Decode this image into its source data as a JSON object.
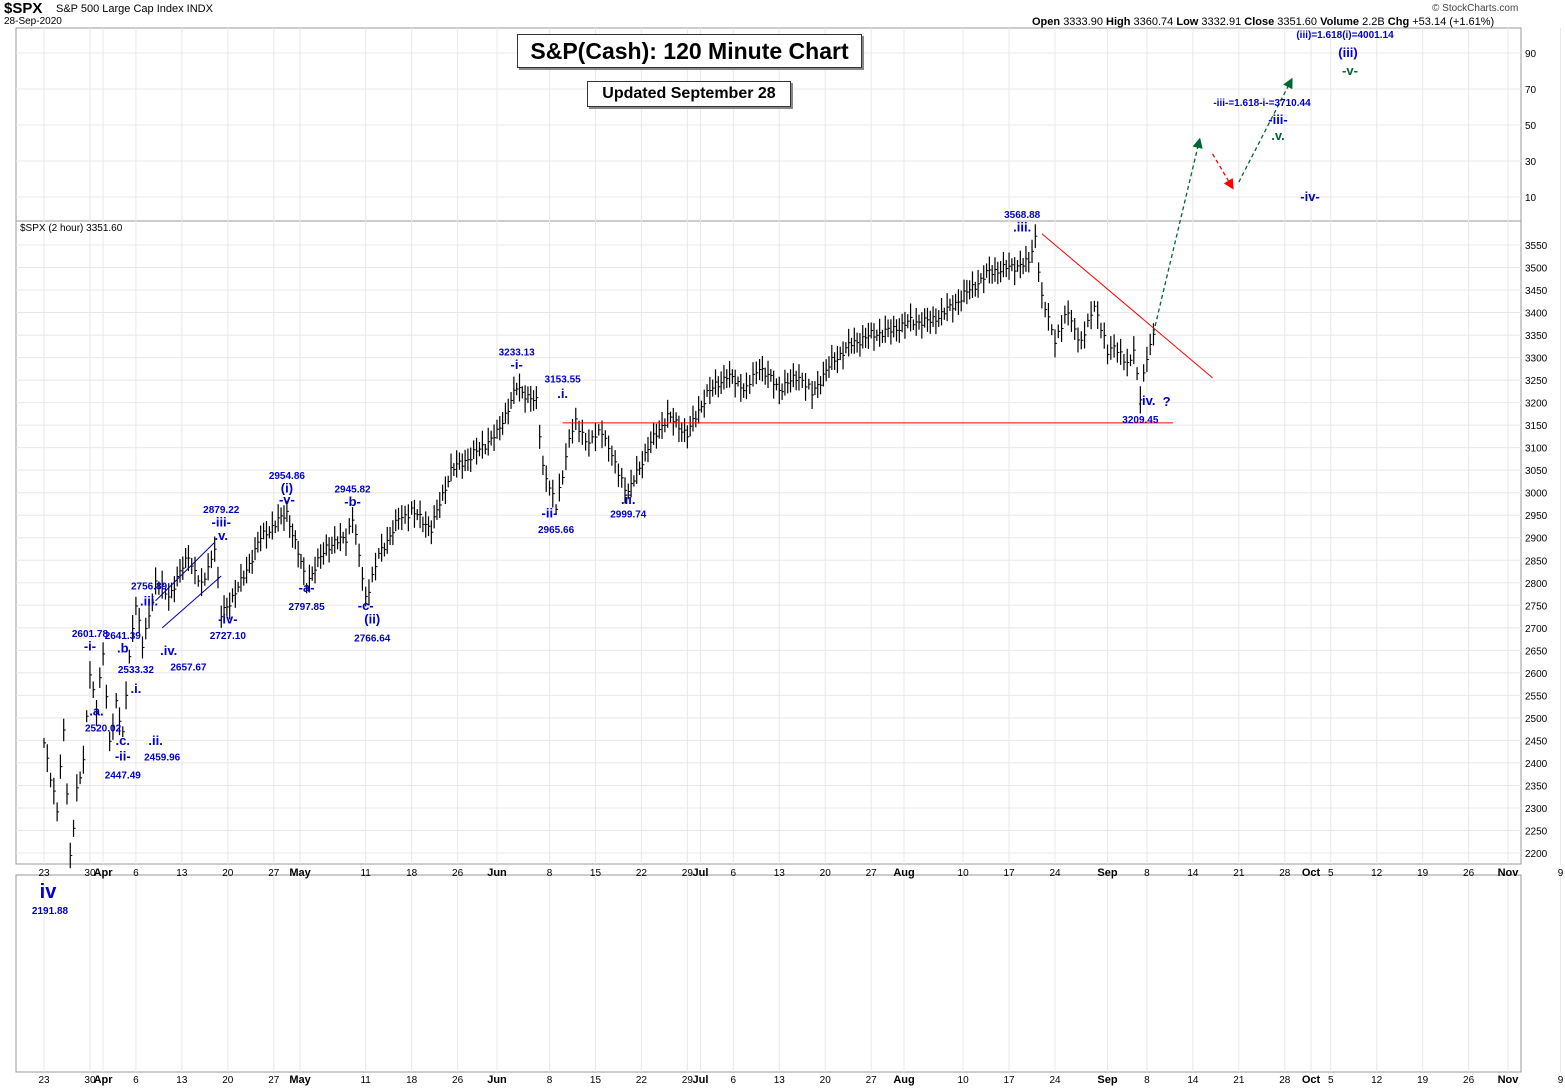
{
  "header": {
    "symbol": "$SPX",
    "name": "S&P 500 Large Cap Index INDX",
    "date": "28-Sep-2020",
    "open_label": "Open",
    "open": "3333.90",
    "high_label": "High",
    "high": "3360.74",
    "low_label": "Low",
    "low": "3332.91",
    "close_label": "Close",
    "close": "3351.60",
    "volume_label": "Volume",
    "volume": "2.2B",
    "chg_label": "Chg",
    "chg": "+53.14 (+1.61%)",
    "credit": "© StockCharts.com"
  },
  "titles": {
    "main": "S&P(Cash): 120 Minute Chart",
    "sub": "Updated September 28"
  },
  "panel_label": "$SPX (2 hour) 3351.60",
  "colors": {
    "wave_label": "#0000cc",
    "wave_label_dark": "#006633",
    "trendline": "#ff0000",
    "projection_up": "#006633",
    "projection_down": "#ff0000",
    "price": "#000000",
    "grid": "#e8e8e8"
  },
  "chart_data": {
    "type": "line",
    "title": "S&P(Cash): 120 Minute Chart",
    "subtitle": "Updated September 28",
    "series_label": "$SPX (2 hour) 3351.60",
    "ylim": [
      2180,
      3590
    ],
    "y_ticks": [
      2200,
      2250,
      2300,
      2350,
      2400,
      2450,
      2500,
      2550,
      2600,
      2650,
      2700,
      2750,
      2800,
      2850,
      2900,
      2950,
      3000,
      3050,
      3100,
      3150,
      3200,
      3250,
      3300,
      3350,
      3400,
      3450,
      3500,
      3550
    ],
    "y_ticks_upper": [
      "90",
      "70",
      "50",
      "30",
      "10"
    ],
    "x_ticks": [
      {
        "label": "23",
        "month": false,
        "day": 0
      },
      {
        "label": "30",
        "month": false,
        "day": 7
      },
      {
        "label": "Apr",
        "month": true,
        "day": 9
      },
      {
        "label": "6",
        "month": false,
        "day": 14
      },
      {
        "label": "13",
        "month": false,
        "day": 21
      },
      {
        "label": "20",
        "month": false,
        "day": 28
      },
      {
        "label": "27",
        "month": false,
        "day": 35
      },
      {
        "label": "May",
        "month": true,
        "day": 39
      },
      {
        "label": "11",
        "month": false,
        "day": 49
      },
      {
        "label": "18",
        "month": false,
        "day": 56
      },
      {
        "label": "26",
        "month": false,
        "day": 63
      },
      {
        "label": "Jun",
        "month": true,
        "day": 69
      },
      {
        "label": "8",
        "month": false,
        "day": 77
      },
      {
        "label": "15",
        "month": false,
        "day": 84
      },
      {
        "label": "22",
        "month": false,
        "day": 91
      },
      {
        "label": "29",
        "month": false,
        "day": 98
      },
      {
        "label": "Jul",
        "month": true,
        "day": 100
      },
      {
        "label": "6",
        "month": false,
        "day": 105
      },
      {
        "label": "13",
        "month": false,
        "day": 112
      },
      {
        "label": "20",
        "month": false,
        "day": 119
      },
      {
        "label": "27",
        "month": false,
        "day": 126
      },
      {
        "label": "Aug",
        "month": true,
        "day": 131
      },
      {
        "label": "10",
        "month": false,
        "day": 140
      },
      {
        "label": "17",
        "month": false,
        "day": 147
      },
      {
        "label": "24",
        "month": false,
        "day": 154
      },
      {
        "label": "Sep",
        "month": true,
        "day": 162
      },
      {
        "label": "8",
        "month": false,
        "day": 168
      },
      {
        "label": "14",
        "month": false,
        "day": 175
      },
      {
        "label": "21",
        "month": false,
        "day": 182
      },
      {
        "label": "28",
        "month": false,
        "day": 189
      },
      {
        "label": "Oct",
        "month": true,
        "day": 193
      },
      {
        "label": "5",
        "month": false,
        "day": 196
      },
      {
        "label": "12",
        "month": false,
        "day": 203
      },
      {
        "label": "19",
        "month": false,
        "day": 210
      },
      {
        "label": "26",
        "month": false,
        "day": 217
      },
      {
        "label": "Nov",
        "month": true,
        "day": 223
      },
      {
        "label": "9",
        "month": false,
        "day": 231
      }
    ],
    "price_path": [
      [
        0,
        2440
      ],
      [
        2,
        2300
      ],
      [
        3,
        2470
      ],
      [
        4,
        2191.88
      ],
      [
        5,
        2340
      ],
      [
        6,
        2400
      ],
      [
        7,
        2601.78
      ],
      [
        8,
        2520.02
      ],
      [
        9,
        2641.39
      ],
      [
        10,
        2447.49
      ],
      [
        11,
        2533.32
      ],
      [
        12,
        2459.96
      ],
      [
        13,
        2640
      ],
      [
        14,
        2756.89
      ],
      [
        15,
        2657.67
      ],
      [
        17,
        2800
      ],
      [
        19,
        2770
      ],
      [
        22,
        2860
      ],
      [
        24,
        2790
      ],
      [
        26,
        2879.22
      ],
      [
        27,
        2727.1
      ],
      [
        30,
        2800
      ],
      [
        33,
        2900
      ],
      [
        37,
        2954.86
      ],
      [
        40,
        2797.85
      ],
      [
        43,
        2880
      ],
      [
        46,
        2900
      ],
      [
        47,
        2945.82
      ],
      [
        49,
        2766.64
      ],
      [
        51,
        2860
      ],
      [
        54,
        2940
      ],
      [
        56,
        2960
      ],
      [
        59,
        2920
      ],
      [
        62,
        3050
      ],
      [
        65,
        3080
      ],
      [
        69,
        3130
      ],
      [
        72,
        3233.13
      ],
      [
        75,
        3200
      ],
      [
        76,
        3060
      ],
      [
        78,
        2965.66
      ],
      [
        80,
        3120
      ],
      [
        81,
        3153.55
      ],
      [
        83,
        3110
      ],
      [
        85,
        3140
      ],
      [
        87,
        3060
      ],
      [
        89,
        2999.74
      ],
      [
        92,
        3100
      ],
      [
        95,
        3170
      ],
      [
        98,
        3130
      ],
      [
        101,
        3220
      ],
      [
        104,
        3260
      ],
      [
        107,
        3230
      ],
      [
        109,
        3280
      ],
      [
        112,
        3230
      ],
      [
        115,
        3260
      ],
      [
        117,
        3220
      ],
      [
        120,
        3290
      ],
      [
        123,
        3330
      ],
      [
        126,
        3350
      ],
      [
        129,
        3360
      ],
      [
        132,
        3380
      ],
      [
        135,
        3380
      ],
      [
        138,
        3410
      ],
      [
        141,
        3450
      ],
      [
        144,
        3490
      ],
      [
        147,
        3500
      ],
      [
        150,
        3510
      ],
      [
        151,
        3568.88
      ],
      [
        152,
        3430
      ],
      [
        154,
        3340
      ],
      [
        156,
        3400
      ],
      [
        158,
        3330
      ],
      [
        160,
        3420
      ],
      [
        162,
        3310
      ],
      [
        163,
        3330
      ],
      [
        165,
        3280
      ],
      [
        166,
        3320
      ],
      [
        167,
        3209.45
      ],
      [
        168,
        3300
      ],
      [
        169,
        3351.6
      ]
    ],
    "horizontal_line": {
      "y": 3155,
      "from_day": 79,
      "to_day": 172
    },
    "trendline": {
      "from": [
        152,
        3575
      ],
      "to": [
        178,
        3255
      ]
    },
    "projection": [
      {
        "from": [
          169,
          3355
        ],
        "to": [
          176,
          3710.44
        ],
        "kind": "up"
      },
      {
        "from": [
          178,
          3690
        ],
        "to": [
          181,
          3640
        ],
        "kind": "down"
      },
      {
        "from": [
          182,
          3648
        ],
        "to": [
          190,
          3800
        ],
        "kind": "up"
      }
    ],
    "wave_labels": [
      {
        "text": "2601.78",
        "day": 7,
        "price": 2680,
        "kind": "value"
      },
      {
        "text": "-i-",
        "day": 7,
        "price": 2650,
        "kind": "wave"
      },
      {
        "text": ".a.",
        "day": 8,
        "price": 2505,
        "kind": "wave"
      },
      {
        "text": "2520.02",
        "day": 9,
        "price": 2470,
        "kind": "value"
      },
      {
        "text": "2641.39",
        "day": 12,
        "price": 2675,
        "kind": "value"
      },
      {
        "text": ".b",
        "day": 12,
        "price": 2645,
        "kind": "wave"
      },
      {
        "text": "2533.32",
        "day": 14,
        "price": 2600,
        "kind": "value"
      },
      {
        "text": ".i.",
        "day": 14,
        "price": 2555,
        "kind": "wave"
      },
      {
        "text": ".c.",
        "day": 12,
        "price": 2440,
        "kind": "wave"
      },
      {
        "text": ".ii.",
        "day": 17,
        "price": 2440,
        "kind": "wave"
      },
      {
        "text": "-ii-",
        "day": 12,
        "price": 2405,
        "kind": "wave"
      },
      {
        "text": "2459.96",
        "day": 18,
        "price": 2405,
        "kind": "value"
      },
      {
        "text": "2447.49",
        "day": 12,
        "price": 2365,
        "kind": "value"
      },
      {
        "text": "2756.89",
        "day": 16,
        "price": 2785,
        "kind": "value"
      },
      {
        "text": ".iii.",
        "day": 16,
        "price": 2750,
        "kind": "wave"
      },
      {
        "text": ".iv.",
        "day": 19,
        "price": 2640,
        "kind": "wave"
      },
      {
        "text": "2657.67",
        "day": 22,
        "price": 2605,
        "kind": "value"
      },
      {
        "text": "2879.22",
        "day": 27,
        "price": 2955,
        "kind": "value"
      },
      {
        "text": "-iii-",
        "day": 27,
        "price": 2925,
        "kind": "wave"
      },
      {
        "text": ".v.",
        "day": 27,
        "price": 2895,
        "kind": "wave"
      },
      {
        "text": "-iv-",
        "day": 28,
        "price": 2710,
        "kind": "wave"
      },
      {
        "text": "2727.10",
        "day": 28,
        "price": 2675,
        "kind": "value"
      },
      {
        "text": "2954.86",
        "day": 37,
        "price": 3030,
        "kind": "value"
      },
      {
        "text": "(i)",
        "day": 37,
        "price": 3000,
        "kind": "wave"
      },
      {
        "text": "-v-",
        "day": 37,
        "price": 2975,
        "kind": "wave"
      },
      {
        "text": "-a-",
        "day": 40,
        "price": 2780,
        "kind": "wave"
      },
      {
        "text": "2797.85",
        "day": 40,
        "price": 2740,
        "kind": "value"
      },
      {
        "text": "2945.82",
        "day": 47,
        "price": 3000,
        "kind": "value"
      },
      {
        "text": "-b-",
        "day": 47,
        "price": 2970,
        "kind": "wave"
      },
      {
        "text": "-c-",
        "day": 49,
        "price": 2740,
        "kind": "wave"
      },
      {
        "text": "(ii)",
        "day": 50,
        "price": 2710,
        "kind": "wave"
      },
      {
        "text": "2766.64",
        "day": 50,
        "price": 2670,
        "kind": "value"
      },
      {
        "text": "3233.13",
        "day": 72,
        "price": 3305,
        "kind": "value"
      },
      {
        "text": "-i-",
        "day": 72,
        "price": 3275,
        "kind": "wave"
      },
      {
        "text": "3153.55",
        "day": 79,
        "price": 3245,
        "kind": "value"
      },
      {
        "text": ".i.",
        "day": 79,
        "price": 3210,
        "kind": "wave"
      },
      {
        "text": "-ii-",
        "day": 77,
        "price": 2945,
        "kind": "wave"
      },
      {
        "text": "2965.66",
        "day": 78,
        "price": 2910,
        "kind": "value"
      },
      {
        "text": ".ii.",
        "day": 89,
        "price": 2975,
        "kind": "wave"
      },
      {
        "text": "2999.74",
        "day": 89,
        "price": 2945,
        "kind": "value"
      },
      {
        "text": "3568.88",
        "day": 149,
        "price": 3610,
        "kind": "value"
      },
      {
        "text": ".iii.",
        "day": 149,
        "price": 3580,
        "kind": "wave"
      },
      {
        "text": ".iv.",
        "day": 168,
        "price": 3195,
        "kind": "wave"
      },
      {
        "text": "?",
        "day": 171,
        "price": 3192,
        "kind": "wave"
      },
      {
        "text": "3209.45",
        "day": 167,
        "price": 3155,
        "kind": "value"
      }
    ],
    "projection_labels": [
      {
        "text": "-iii-=1.618-i-=3710.44",
        "kind": "value"
      },
      {
        "text": "-iii-",
        "kind": "wave"
      },
      {
        "text": ".v.",
        "kind": "wave_dark"
      },
      {
        "text": "-iv-",
        "kind": "wave"
      },
      {
        "text": "(iii)=1.618(i)=4001.14",
        "kind": "value"
      },
      {
        "text": "(iii)",
        "kind": "wave"
      },
      {
        "text": "-v-",
        "kind": "wave_dark"
      }
    ],
    "below_label": {
      "text": "iv",
      "value": "2191.88"
    }
  }
}
